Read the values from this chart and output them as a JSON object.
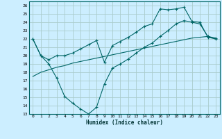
{
  "xlabel": "Humidex (Indice chaleur)",
  "bg_color": "#cceeff",
  "grid_color": "#aacccc",
  "line_color": "#006666",
  "xlim": [
    -0.5,
    23.5
  ],
  "ylim": [
    13,
    26.5
  ],
  "yticks": [
    13,
    14,
    15,
    16,
    17,
    18,
    19,
    20,
    21,
    22,
    23,
    24,
    25,
    26
  ],
  "xticks": [
    0,
    1,
    2,
    3,
    4,
    5,
    6,
    7,
    8,
    9,
    10,
    11,
    12,
    13,
    14,
    15,
    16,
    17,
    18,
    19,
    20,
    21,
    22,
    23
  ],
  "line1_x": [
    0,
    1,
    2,
    3,
    4,
    5,
    6,
    7,
    8,
    9,
    10,
    11,
    12,
    13,
    14,
    15,
    16,
    17,
    18,
    19,
    20,
    21,
    22,
    23
  ],
  "line1_y": [
    22.0,
    20.0,
    19.5,
    20.0,
    20.0,
    20.3,
    20.8,
    21.3,
    21.8,
    19.2,
    21.2,
    21.7,
    22.2,
    22.8,
    23.5,
    23.8,
    25.6,
    25.5,
    25.6,
    25.8,
    24.1,
    24.0,
    22.2,
    22.0
  ],
  "line2_x": [
    0,
    1,
    2,
    3,
    4,
    5,
    6,
    7,
    8,
    9,
    10,
    11,
    12,
    13,
    14,
    15,
    16,
    17,
    18,
    19,
    20,
    21,
    22,
    23
  ],
  "line2_y": [
    22.0,
    20.0,
    19.0,
    17.3,
    15.1,
    14.3,
    13.6,
    13.0,
    13.8,
    16.6,
    18.5,
    19.0,
    19.6,
    20.3,
    21.0,
    21.5,
    22.3,
    23.0,
    23.8,
    24.2,
    24.0,
    23.8,
    22.3,
    22.1
  ],
  "line3_x": [
    0,
    1,
    2,
    3,
    4,
    5,
    6,
    7,
    8,
    9,
    10,
    11,
    12,
    13,
    14,
    15,
    16,
    17,
    18,
    19,
    20,
    21,
    22,
    23
  ],
  "line3_y": [
    17.5,
    18.0,
    18.3,
    18.6,
    18.8,
    19.1,
    19.3,
    19.5,
    19.7,
    19.9,
    20.1,
    20.3,
    20.5,
    20.7,
    20.9,
    21.1,
    21.3,
    21.5,
    21.7,
    21.9,
    22.1,
    22.2,
    22.3,
    22.0
  ]
}
